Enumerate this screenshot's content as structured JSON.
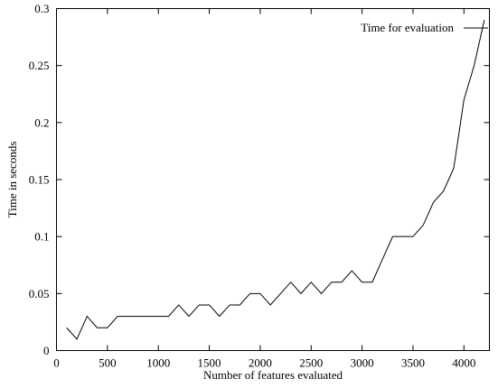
{
  "chart_data": {
    "type": "line",
    "title": "",
    "xlabel": "Number of features evaluated",
    "ylabel": "Time in seconds",
    "xlim": [
      0,
      4250
    ],
    "ylim": [
      0,
      0.3
    ],
    "x_ticks": [
      0,
      500,
      1000,
      1500,
      2000,
      2500,
      3000,
      3500,
      4000
    ],
    "x_tick_labels": [
      "0",
      "500",
      "1000",
      "1500",
      "2000",
      "2500",
      "3000",
      "3500",
      "4000"
    ],
    "y_ticks": [
      0,
      0.05,
      0.1,
      0.15,
      0.2,
      0.25,
      0.3
    ],
    "y_tick_labels": [
      "0",
      "0.05",
      "0.1",
      "0.15",
      "0.2",
      "0.25",
      "0.3"
    ],
    "grid": false,
    "legend_position": "top-right",
    "series": [
      {
        "name": "Time for evaluation",
        "color": "#000000",
        "x": [
          100,
          200,
          300,
          400,
          500,
          600,
          700,
          800,
          900,
          1000,
          1100,
          1200,
          1300,
          1400,
          1500,
          1600,
          1700,
          1800,
          1900,
          2000,
          2100,
          2200,
          2300,
          2400,
          2500,
          2600,
          2700,
          2800,
          2900,
          3000,
          3100,
          3200,
          3300,
          3400,
          3500,
          3600,
          3700,
          3800,
          3900,
          4000,
          4100,
          4200
        ],
        "y": [
          0.02,
          0.01,
          0.03,
          0.02,
          0.02,
          0.03,
          0.03,
          0.03,
          0.03,
          0.03,
          0.03,
          0.04,
          0.03,
          0.04,
          0.04,
          0.03,
          0.04,
          0.04,
          0.05,
          0.05,
          0.04,
          0.05,
          0.06,
          0.05,
          0.06,
          0.05,
          0.06,
          0.06,
          0.07,
          0.06,
          0.06,
          0.08,
          0.1,
          0.1,
          0.1,
          0.11,
          0.13,
          0.14,
          0.16,
          0.22,
          0.25,
          0.29
        ]
      }
    ]
  }
}
